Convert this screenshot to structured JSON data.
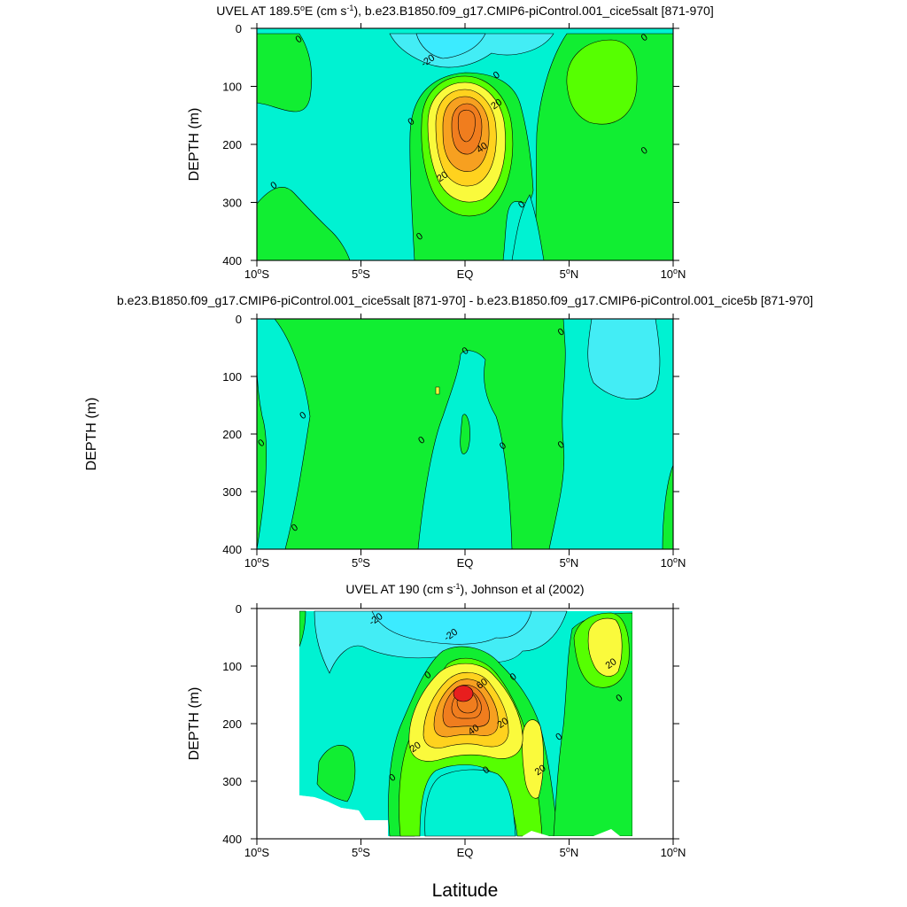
{
  "figure": {
    "xlabel": "Latitude",
    "ylabel_outer": "DEPTH (m)",
    "colors": {
      "cyan_m20": "#3CEBFF",
      "aqua_m10": "#43EDF5",
      "teal_0": "#00F2D2",
      "green_10": "#11EE32",
      "lime_20": "#56FF01",
      "yellow_30": "#FAFA3C",
      "gold_40": "#FFD21E",
      "orange_50": "#F7A020",
      "orange_60": "#F07D1E",
      "red_70": "#E81E1E"
    }
  },
  "chart_data": [
    {
      "type": "contour",
      "title_main": "UVEL AT 189.5",
      "title_deg": "o",
      "title_mid": "E (cm s",
      "title_exp": "-1",
      "title_end": "), b.e23.B1850.f09_g17.CMIP6-piControl.001_cice5salt [871-970]",
      "ylabel": "DEPTH (m)",
      "xlim": [
        -10,
        10
      ],
      "ylim": [
        0,
        400
      ],
      "xticks": [
        -10,
        -5,
        0,
        5,
        10
      ],
      "xticklabels": [
        [
          "10",
          "S"
        ],
        [
          "5",
          "S"
        ],
        [
          "EQ",
          ""
        ],
        [
          "5",
          "N"
        ],
        [
          "10",
          "N"
        ]
      ],
      "yticks": [
        0,
        100,
        200,
        300,
        400
      ],
      "contour_interval": 10,
      "jet_core": {
        "lat": 0.0,
        "depth": 150,
        "max_speed": 50
      },
      "contour_labels": [
        {
          "text": "0",
          "lat": -8.0,
          "depth": 18
        },
        {
          "text": "-20",
          "lat": -1.8,
          "depth": 55
        },
        {
          "text": "0",
          "lat": 1.5,
          "depth": 80
        },
        {
          "text": "20",
          "lat": 1.5,
          "depth": 130
        },
        {
          "text": "0",
          "lat": -2.6,
          "depth": 160
        },
        {
          "text": "40",
          "lat": 0.8,
          "depth": 205
        },
        {
          "text": "20",
          "lat": -1.1,
          "depth": 255
        },
        {
          "text": "0",
          "lat": -9.2,
          "depth": 270
        },
        {
          "text": "0",
          "lat": 2.7,
          "depth": 303
        },
        {
          "text": "0",
          "lat": -2.2,
          "depth": 358
        },
        {
          "text": "0",
          "lat": 8.6,
          "depth": 15
        },
        {
          "text": "0",
          "lat": 8.6,
          "depth": 210
        }
      ]
    },
    {
      "type": "contour",
      "title": "b.e23.B1850.f09_g17.CMIP6-piControl.001_cice5salt [871-970] - b.e23.B1850.f09_g17.CMIP6-piControl.001_cice5b [871-970]",
      "ylabel": "",
      "xlim": [
        -10,
        10
      ],
      "ylim": [
        0,
        400
      ],
      "xticks": [
        -10,
        -5,
        0,
        5,
        10
      ],
      "xticklabels": [
        [
          "10",
          "S"
        ],
        [
          "5",
          "S"
        ],
        [
          "EQ",
          ""
        ],
        [
          "5",
          "N"
        ],
        [
          "10",
          "N"
        ]
      ],
      "yticks": [
        0,
        100,
        200,
        300,
        400
      ],
      "contour_labels": [
        {
          "text": "0",
          "lat": -9.8,
          "depth": 215
        },
        {
          "text": "0",
          "lat": -7.8,
          "depth": 167
        },
        {
          "text": "0",
          "lat": -8.2,
          "depth": 362
        },
        {
          "text": "0",
          "lat": -2.1,
          "depth": 210
        },
        {
          "text": "0",
          "lat": 0.0,
          "depth": 55
        },
        {
          "text": "0",
          "lat": 1.8,
          "depth": 220
        },
        {
          "text": "0",
          "lat": 4.6,
          "depth": 22
        },
        {
          "text": "0",
          "lat": 4.6,
          "depth": 218
        }
      ]
    },
    {
      "type": "contour",
      "title_main": "UVEL AT 190 (cm s",
      "title_exp": "-1",
      "title_end": "), Johnson et al (2002)",
      "ylabel": "DEPTH (m)",
      "xlim": [
        -10,
        10
      ],
      "ylim": [
        0,
        400
      ],
      "xticks": [
        -10,
        -5,
        0,
        5,
        10
      ],
      "xticklabels": [
        [
          "10",
          "S"
        ],
        [
          "5",
          "S"
        ],
        [
          "EQ",
          ""
        ],
        [
          "5",
          "N"
        ],
        [
          "10",
          "N"
        ]
      ],
      "yticks": [
        0,
        100,
        200,
        300,
        400
      ],
      "data_lat_range": [
        -8,
        8
      ],
      "jet_core": {
        "lat": 0.0,
        "depth": 150,
        "max_speed": 70
      },
      "contour_labels": [
        {
          "text": "-20",
          "lat": -4.3,
          "depth": 18
        },
        {
          "text": "-20",
          "lat": -0.7,
          "depth": 45
        },
        {
          "text": "0",
          "lat": -1.8,
          "depth": 115
        },
        {
          "text": "60",
          "lat": 0.8,
          "depth": 130
        },
        {
          "text": "0",
          "lat": 2.3,
          "depth": 118
        },
        {
          "text": "40",
          "lat": 0.4,
          "depth": 210
        },
        {
          "text": "20",
          "lat": 1.8,
          "depth": 198
        },
        {
          "text": "20",
          "lat": -2.4,
          "depth": 240
        },
        {
          "text": "0",
          "lat": 4.5,
          "depth": 222
        },
        {
          "text": "20",
          "lat": 7.0,
          "depth": 95
        },
        {
          "text": "0",
          "lat": 7.4,
          "depth": 155
        },
        {
          "text": "20",
          "lat": 3.6,
          "depth": 280
        },
        {
          "text": "0",
          "lat": -3.5,
          "depth": 293
        },
        {
          "text": "0",
          "lat": 1.0,
          "depth": 280
        }
      ]
    }
  ]
}
